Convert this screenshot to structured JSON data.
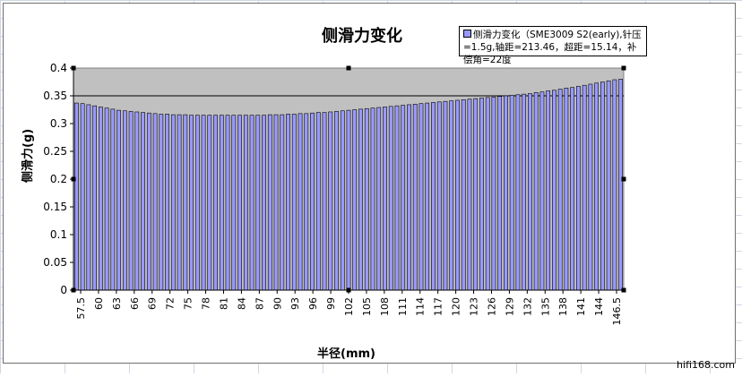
{
  "chart_data": {
    "type": "bar",
    "title": "侧滑力变化",
    "xlabel": "半径(mm)",
    "ylabel": "侧滑力(g)",
    "legend": "侧滑力变化（SME3009 S2(early),针压=1.5g,轴距=213.46，超距=15.14，补偿角=22度",
    "legend_position": "top-right",
    "ylim": [
      0,
      0.4
    ],
    "yticks": [
      "0",
      "0.05",
      "0.1",
      "0.15",
      "0.2",
      "0.25",
      "0.3",
      "0.35",
      "0.4"
    ],
    "xtick_labels": [
      "57.5",
      "60",
      "63",
      "66",
      "69",
      "72",
      "75",
      "78",
      "81",
      "84",
      "87",
      "90",
      "93",
      "96",
      "99",
      "102",
      "105",
      "108",
      "111",
      "114",
      "117",
      "120",
      "123",
      "126",
      "129",
      "132",
      "135",
      "138",
      "141",
      "144",
      "146.5"
    ],
    "grid": "horizontal",
    "reference_line": 0.35,
    "bar_color": "#9999ff",
    "plot_background": "#c0c0c0",
    "x": [
      57.5,
      58,
      59,
      60,
      61,
      62,
      63,
      64,
      65,
      66,
      67,
      68,
      69,
      70,
      71,
      72,
      73,
      74,
      75,
      76,
      77,
      78,
      79,
      80,
      81,
      82,
      83,
      84,
      85,
      86,
      87,
      88,
      89,
      90,
      91,
      92,
      93,
      94,
      95,
      96,
      97,
      98,
      99,
      100,
      101,
      102,
      103,
      104,
      105,
      106,
      107,
      108,
      109,
      110,
      111,
      112,
      113,
      114,
      115,
      116,
      117,
      118,
      119,
      120,
      121,
      122,
      123,
      124,
      125,
      126,
      127,
      128,
      129,
      130,
      131,
      132,
      133,
      134,
      135,
      136,
      137,
      138,
      139,
      140,
      141,
      142,
      143,
      144,
      145,
      146,
      146.5
    ],
    "values": [
      0.337,
      0.336,
      0.334,
      0.332,
      0.33,
      0.328,
      0.326,
      0.324,
      0.323,
      0.322,
      0.321,
      0.32,
      0.319,
      0.318,
      0.317,
      0.317,
      0.316,
      0.316,
      0.316,
      0.315,
      0.315,
      0.315,
      0.315,
      0.315,
      0.315,
      0.315,
      0.315,
      0.315,
      0.315,
      0.315,
      0.315,
      0.315,
      0.316,
      0.316,
      0.316,
      0.317,
      0.317,
      0.318,
      0.318,
      0.319,
      0.32,
      0.32,
      0.321,
      0.322,
      0.323,
      0.324,
      0.325,
      0.326,
      0.327,
      0.328,
      0.329,
      0.33,
      0.331,
      0.332,
      0.333,
      0.334,
      0.335,
      0.336,
      0.337,
      0.338,
      0.339,
      0.34,
      0.341,
      0.342,
      0.343,
      0.344,
      0.345,
      0.346,
      0.347,
      0.348,
      0.349,
      0.35,
      0.351,
      0.352,
      0.353,
      0.354,
      0.356,
      0.357,
      0.359,
      0.36,
      0.362,
      0.364,
      0.365,
      0.367,
      0.369,
      0.371,
      0.373,
      0.375,
      0.377,
      0.379,
      0.38
    ]
  },
  "watermark": "hifi168.com"
}
